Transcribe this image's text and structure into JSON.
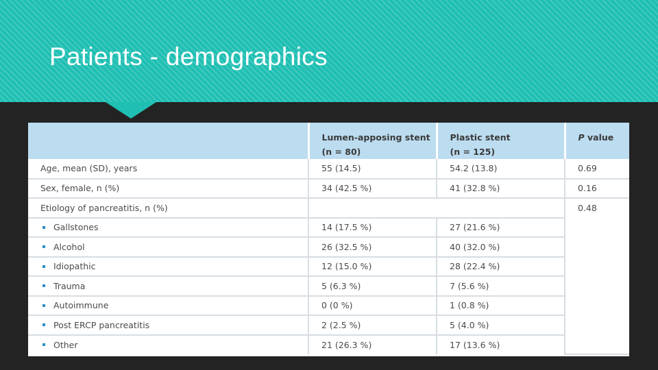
{
  "slide": {
    "title": "Patients - demographics",
    "accent_color": "#1fbfb3",
    "background_color": "#232323"
  },
  "table": {
    "header_color": "#bcdcf0",
    "bullet_color": "#2a8fc8",
    "columns": [
      {
        "line1": "",
        "line2": ""
      },
      {
        "line1": "Lumen-apposing stent",
        "line2": "(n = 80)"
      },
      {
        "line1": "Plastic stent",
        "line2": "(n = 125)"
      },
      {
        "line1": "P value"
      }
    ],
    "rows": [
      {
        "label": "Age, mean (SD), years",
        "lams": "55 (14.5)",
        "plastic": "54.2 (13.8)",
        "p": "0.69"
      },
      {
        "label": "Sex, female, n (%)",
        "lams": "34 (42.5 %)",
        "plastic": "41 (32.8 %)",
        "p": "0.16"
      },
      {
        "label": "Etiology of pancreatitis, n (%)",
        "lams": "",
        "plastic": "",
        "p": "0.48"
      },
      {
        "label": "Gallstones",
        "lams": "14 (17.5 %)",
        "plastic": "27 (21.6 %)",
        "p": ""
      },
      {
        "label": "Alcohol",
        "lams": "26 (32.5 %)",
        "plastic": "40 (32.0 %)",
        "p": ""
      },
      {
        "label": "Idiopathic",
        "lams": "12 (15.0 %)",
        "plastic": "28 (22.4 %)",
        "p": ""
      },
      {
        "label": "Trauma",
        "lams": "5 (6.3 %)",
        "plastic": "7 (5.6 %)",
        "p": ""
      },
      {
        "label": "Autoimmune",
        "lams": "0 (0 %)",
        "plastic": "1 (0.8 %)",
        "p": ""
      },
      {
        "label": "Post ERCP pancreatitis",
        "lams": "2 (2.5 %)",
        "plastic": "5 (4.0 %)",
        "p": ""
      },
      {
        "label": "Other",
        "lams": "21 (26.3 %)",
        "plastic": "17 (13.6 %)",
        "p": ""
      }
    ]
  }
}
